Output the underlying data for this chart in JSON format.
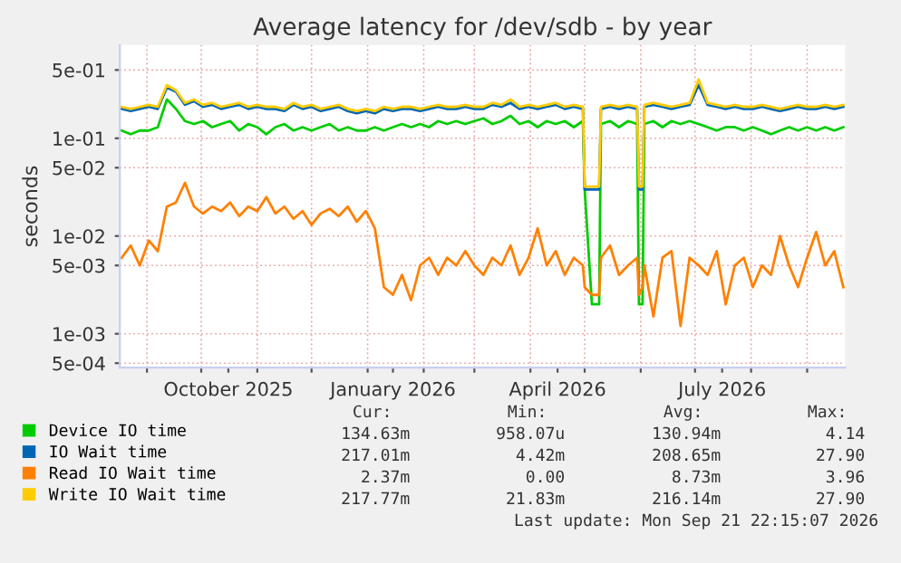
{
  "chart_data": {
    "type": "line",
    "title": "Average latency for /dev/sdb - by year",
    "ylabel": "seconds",
    "x": [
      "2025-08-18",
      "2025-08-23",
      "2025-08-28",
      "2025-09-02",
      "2025-09-07",
      "2025-09-12",
      "2025-09-17",
      "2025-09-22",
      "2025-09-27",
      "2025-10-02",
      "2025-10-07",
      "2025-10-12",
      "2025-10-17",
      "2025-10-22",
      "2025-10-27",
      "2025-11-01",
      "2025-11-06",
      "2025-11-11",
      "2025-11-16",
      "2025-11-21",
      "2025-11-26",
      "2025-12-01",
      "2025-12-06",
      "2025-12-11",
      "2025-12-16",
      "2025-12-21",
      "2025-12-26",
      "2025-12-31",
      "2026-01-05",
      "2026-01-10",
      "2026-01-15",
      "2026-01-20",
      "2026-01-25",
      "2026-01-30",
      "2026-02-04",
      "2026-02-09",
      "2026-02-14",
      "2026-02-19",
      "2026-02-24",
      "2026-03-01",
      "2026-03-06",
      "2026-03-11",
      "2026-03-16",
      "2026-03-21",
      "2026-03-26",
      "2026-03-31",
      "2026-04-05",
      "2026-04-10",
      "2026-04-15",
      "2026-04-20",
      "2026-04-25",
      "2026-04-30",
      "2026-05-01",
      "2026-05-05",
      "2026-05-09",
      "2026-05-10",
      "2026-05-15",
      "2026-05-20",
      "2026-05-25",
      "2026-05-30",
      "2026-05-31",
      "2026-06-02",
      "2026-06-03",
      "2026-06-08",
      "2026-06-13",
      "2026-06-18",
      "2026-06-23",
      "2026-06-28",
      "2026-07-03",
      "2026-07-08",
      "2026-07-13",
      "2026-07-18",
      "2026-07-23",
      "2026-07-28",
      "2026-08-02",
      "2026-08-07",
      "2026-08-12",
      "2026-08-17",
      "2026-08-22",
      "2026-08-27",
      "2026-09-01",
      "2026-09-06",
      "2026-09-11",
      "2026-09-16",
      "2026-09-21"
    ],
    "series": [
      {
        "name": "Device IO time",
        "color": "#00cc00",
        "values": [
          0.12,
          0.11,
          0.12,
          0.12,
          0.13,
          0.25,
          0.2,
          0.15,
          0.14,
          0.15,
          0.13,
          0.14,
          0.15,
          0.12,
          0.14,
          0.13,
          0.11,
          0.13,
          0.14,
          0.12,
          0.13,
          0.12,
          0.13,
          0.14,
          0.12,
          0.13,
          0.12,
          0.12,
          0.13,
          0.12,
          0.13,
          0.14,
          0.13,
          0.14,
          0.13,
          0.15,
          0.14,
          0.15,
          0.14,
          0.15,
          0.16,
          0.14,
          0.15,
          0.17,
          0.14,
          0.15,
          0.13,
          0.15,
          0.14,
          0.15,
          0.13,
          0.15,
          0.03,
          0.002,
          0.002,
          0.14,
          0.15,
          0.13,
          0.15,
          0.14,
          0.002,
          0.002,
          0.14,
          0.15,
          0.13,
          0.15,
          0.14,
          0.15,
          0.14,
          0.13,
          0.12,
          0.13,
          0.13,
          0.12,
          0.13,
          0.12,
          0.11,
          0.12,
          0.13,
          0.12,
          0.13,
          0.12,
          0.13,
          0.12,
          0.13
        ]
      },
      {
        "name": "IO Wait time",
        "color": "#0066b3",
        "values": [
          0.2,
          0.19,
          0.2,
          0.21,
          0.2,
          0.33,
          0.3,
          0.22,
          0.24,
          0.21,
          0.22,
          0.2,
          0.21,
          0.22,
          0.2,
          0.21,
          0.2,
          0.2,
          0.19,
          0.22,
          0.2,
          0.21,
          0.19,
          0.2,
          0.21,
          0.19,
          0.18,
          0.19,
          0.18,
          0.2,
          0.19,
          0.2,
          0.2,
          0.19,
          0.2,
          0.21,
          0.2,
          0.2,
          0.21,
          0.2,
          0.2,
          0.22,
          0.21,
          0.23,
          0.2,
          0.21,
          0.2,
          0.21,
          0.22,
          0.2,
          0.21,
          0.2,
          0.03,
          0.03,
          0.03,
          0.2,
          0.21,
          0.2,
          0.21,
          0.2,
          0.03,
          0.03,
          0.21,
          0.22,
          0.21,
          0.2,
          0.21,
          0.22,
          0.35,
          0.22,
          0.21,
          0.2,
          0.21,
          0.2,
          0.2,
          0.21,
          0.2,
          0.19,
          0.2,
          0.21,
          0.2,
          0.2,
          0.21,
          0.2,
          0.21
        ]
      },
      {
        "name": "Read IO Wait time",
        "color": "#ff8000",
        "values": [
          0.006,
          0.008,
          0.005,
          0.009,
          0.007,
          0.02,
          0.022,
          0.035,
          0.02,
          0.017,
          0.02,
          0.018,
          0.022,
          0.016,
          0.02,
          0.018,
          0.025,
          0.017,
          0.02,
          0.015,
          0.018,
          0.013,
          0.017,
          0.019,
          0.016,
          0.02,
          0.014,
          0.018,
          0.012,
          0.003,
          0.0025,
          0.004,
          0.0022,
          0.005,
          0.006,
          0.004,
          0.006,
          0.005,
          0.007,
          0.005,
          0.004,
          0.006,
          0.005,
          0.008,
          0.004,
          0.006,
          0.012,
          0.005,
          0.007,
          0.004,
          0.006,
          0.005,
          0.003,
          0.0025,
          0.0025,
          0.006,
          0.008,
          0.004,
          0.005,
          0.006,
          0.0025,
          0.003,
          0.005,
          0.0015,
          0.006,
          0.007,
          0.0012,
          0.006,
          0.005,
          0.004,
          0.007,
          0.002,
          0.005,
          0.006,
          0.003,
          0.005,
          0.004,
          0.01,
          0.005,
          0.003,
          0.006,
          0.011,
          0.005,
          0.007,
          0.003
        ]
      },
      {
        "name": "Write IO Wait time",
        "color": "#ffcc00",
        "values": [
          0.21,
          0.2,
          0.21,
          0.22,
          0.21,
          0.35,
          0.31,
          0.23,
          0.25,
          0.22,
          0.23,
          0.21,
          0.22,
          0.23,
          0.21,
          0.22,
          0.21,
          0.21,
          0.2,
          0.23,
          0.21,
          0.22,
          0.2,
          0.21,
          0.22,
          0.2,
          0.19,
          0.2,
          0.19,
          0.21,
          0.2,
          0.21,
          0.21,
          0.2,
          0.21,
          0.22,
          0.21,
          0.21,
          0.22,
          0.21,
          0.21,
          0.23,
          0.22,
          0.25,
          0.21,
          0.22,
          0.21,
          0.22,
          0.23,
          0.21,
          0.22,
          0.21,
          0.032,
          0.032,
          0.032,
          0.21,
          0.22,
          0.21,
          0.22,
          0.21,
          0.032,
          0.032,
          0.22,
          0.23,
          0.22,
          0.21,
          0.22,
          0.23,
          0.4,
          0.23,
          0.22,
          0.21,
          0.22,
          0.21,
          0.21,
          0.22,
          0.21,
          0.2,
          0.21,
          0.22,
          0.21,
          0.21,
          0.22,
          0.21,
          0.22
        ]
      }
    ],
    "log": "y",
    "ylim": [
      0.00045,
      0.9
    ],
    "yticks": [
      {
        "value": 0.5,
        "label": "5e-01"
      },
      {
        "value": 0.1,
        "label": "1e-01"
      },
      {
        "value": 0.05,
        "label": "5e-02"
      },
      {
        "value": 0.01,
        "label": "1e-02"
      },
      {
        "value": 0.005,
        "label": "5e-03"
      },
      {
        "value": 0.001,
        "label": "1e-03"
      },
      {
        "value": 0.0005,
        "label": "5e-04"
      }
    ],
    "xlim": [
      "2025-08-17",
      "2026-09-22"
    ],
    "xticks": [
      {
        "value": "2025-09-01",
        "label": null
      },
      {
        "value": "2025-10-01",
        "label": null
      },
      {
        "value": "2025-10-16",
        "label": "October 2025"
      },
      {
        "value": "2025-11-01",
        "label": null
      },
      {
        "value": "2025-12-01",
        "label": null
      },
      {
        "value": "2026-01-01",
        "label": null
      },
      {
        "value": "2026-01-15",
        "label": "January 2026"
      },
      {
        "value": "2026-02-01",
        "label": null
      },
      {
        "value": "2026-03-01",
        "label": null
      },
      {
        "value": "2026-04-01",
        "label": null
      },
      {
        "value": "2026-04-16",
        "label": "April 2026"
      },
      {
        "value": "2026-05-01",
        "label": null
      },
      {
        "value": "2026-06-01",
        "label": null
      },
      {
        "value": "2026-07-01",
        "label": null
      },
      {
        "value": "2026-07-16",
        "label": "July 2026"
      },
      {
        "value": "2026-08-01",
        "label": null
      },
      {
        "value": "2026-09-01",
        "label": null
      }
    ],
    "grid": true,
    "legend": "bottom",
    "marker": "none",
    "line_style": "solid",
    "annotations": [
      "Cur:",
      "Min:",
      "Avg:",
      "Max:",
      "134.63m",
      "958.07u",
      "130.94m",
      "4.14",
      "217.01m",
      "4.42m",
      "208.65m",
      "27.90",
      "2.37m",
      "0.00",
      "8.73m",
      "3.96",
      "217.77m",
      "21.83m",
      "216.14m",
      "27.90",
      "Last update: Mon Sep 21 22:15:07 2026"
    ]
  }
}
